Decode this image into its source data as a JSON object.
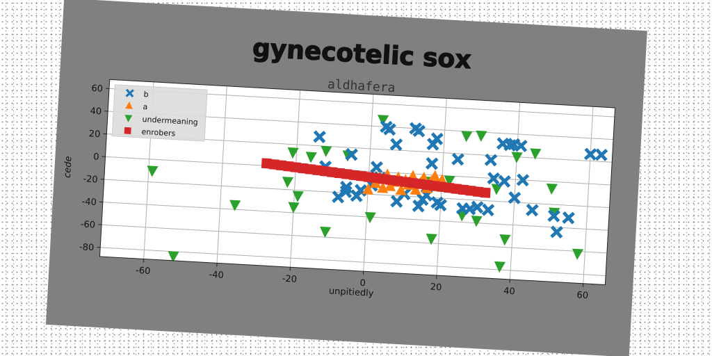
{
  "chart_data": {
    "type": "scatter",
    "title": "gynecotelic sox",
    "subtitle": "aldhafera",
    "xlabel": "unpitiedly",
    "ylabel": "cede",
    "xlim": [
      -72,
      66
    ],
    "ylim": [
      -88,
      68
    ],
    "xticks": [
      -60,
      -40,
      -20,
      0,
      20,
      40,
      60
    ],
    "yticks": [
      -80,
      -60,
      -40,
      -20,
      0,
      20,
      40,
      60
    ],
    "grid": true,
    "legend_position": "top-left",
    "series": [
      {
        "name": "b",
        "marker": "x",
        "color": "#1f77b4",
        "points": [
          [
            -14,
            28
          ],
          [
            -12,
            2
          ],
          [
            -8,
            -24
          ],
          [
            -6,
            -19
          ],
          [
            -6,
            -15
          ],
          [
            -5,
            14
          ],
          [
            -3,
            -22
          ],
          [
            -2,
            -17
          ],
          [
            1,
            -12
          ],
          [
            2,
            4
          ],
          [
            3,
            -5
          ],
          [
            4,
            40
          ],
          [
            5,
            38
          ],
          [
            7,
            25
          ],
          [
            8,
            -25
          ],
          [
            10,
            -18
          ],
          [
            12,
            40
          ],
          [
            13,
            38
          ],
          [
            14,
            -28
          ],
          [
            15,
            -22
          ],
          [
            16,
            -18
          ],
          [
            17,
            27
          ],
          [
            17,
            10
          ],
          [
            18,
            32
          ],
          [
            19,
            -24
          ],
          [
            20,
            -26
          ],
          [
            24,
            15
          ],
          [
            26,
            -28
          ],
          [
            28,
            -28
          ],
          [
            30,
            -26
          ],
          [
            33,
            16
          ],
          [
            33,
            -28
          ],
          [
            34,
            0
          ],
          [
            36,
            31
          ],
          [
            37,
            -2
          ],
          [
            38,
            30
          ],
          [
            39,
            31
          ],
          [
            40,
            -16
          ],
          [
            41,
            30
          ],
          [
            42,
            0
          ],
          [
            45,
            -26
          ],
          [
            51,
            -30
          ],
          [
            52,
            -44
          ],
          [
            55,
            -31
          ],
          [
            60,
            26
          ],
          [
            63,
            26
          ]
        ]
      },
      {
        "name": "a",
        "marker": "^",
        "color": "#ff7f0e",
        "points": [
          [
            0,
            -16
          ],
          [
            2,
            -10
          ],
          [
            3,
            -5
          ],
          [
            4,
            -14
          ],
          [
            5,
            -2
          ],
          [
            6,
            -12
          ],
          [
            7,
            -8
          ],
          [
            8,
            -4
          ],
          [
            9,
            -15
          ],
          [
            10,
            -6
          ],
          [
            11,
            -10
          ],
          [
            12,
            -2
          ],
          [
            13,
            -14
          ],
          [
            14,
            -8
          ],
          [
            15,
            -3
          ],
          [
            16,
            -12
          ],
          [
            17,
            -6
          ],
          [
            18,
            -1
          ],
          [
            19,
            -10
          ],
          [
            20,
            -4
          ]
        ]
      },
      {
        "name": "undermeaning",
        "marker": "v",
        "color": "#2ca02c",
        "points": [
          [
            -59,
            -10
          ],
          [
            -52,
            -84
          ],
          [
            -36,
            -36
          ],
          [
            -22,
            -13
          ],
          [
            -21,
            13
          ],
          [
            -20,
            -35
          ],
          [
            -19,
            -25
          ],
          [
            -16,
            10
          ],
          [
            -12,
            16
          ],
          [
            -11,
            -55
          ],
          [
            -6,
            13
          ],
          [
            1,
            -40
          ],
          [
            3,
            46
          ],
          [
            17,
            -6
          ],
          [
            18,
            -56
          ],
          [
            22,
            -4
          ],
          [
            26,
            36
          ],
          [
            26,
            -34
          ],
          [
            30,
            37
          ],
          [
            30,
            -38
          ],
          [
            35,
            -9
          ],
          [
            37,
            -77
          ],
          [
            38,
            -53
          ],
          [
            40,
            20
          ],
          [
            45,
            24
          ],
          [
            50,
            -6
          ],
          [
            51,
            -27
          ],
          [
            58,
            -62
          ]
        ]
      },
      {
        "name": "enrobers",
        "marker": "s",
        "color": "#d62728",
        "points": [
          [
            -28,
            2
          ],
          [
            -26,
            1.5
          ],
          [
            -24,
            1
          ],
          [
            -22,
            0.5
          ],
          [
            -20,
            0
          ],
          [
            -18,
            -0.5
          ],
          [
            -16,
            -1
          ],
          [
            -14,
            -1.5
          ],
          [
            -12,
            -2
          ],
          [
            -10,
            -2.5
          ],
          [
            -8,
            -3
          ],
          [
            -6,
            -3.5
          ],
          [
            -4,
            -4
          ],
          [
            -2,
            -4.5
          ],
          [
            0,
            -5
          ],
          [
            2,
            -5.5
          ],
          [
            4,
            -6
          ],
          [
            6,
            -6.5
          ],
          [
            8,
            -7
          ],
          [
            10,
            -7.5
          ],
          [
            12,
            -8
          ],
          [
            14,
            -8.5
          ],
          [
            16,
            -9
          ],
          [
            18,
            -9.5
          ],
          [
            20,
            -10
          ],
          [
            22,
            -10.5
          ],
          [
            24,
            -11
          ],
          [
            26,
            -11.5
          ],
          [
            28,
            -12
          ],
          [
            30,
            -12.5
          ],
          [
            32,
            -13
          ]
        ]
      }
    ]
  }
}
